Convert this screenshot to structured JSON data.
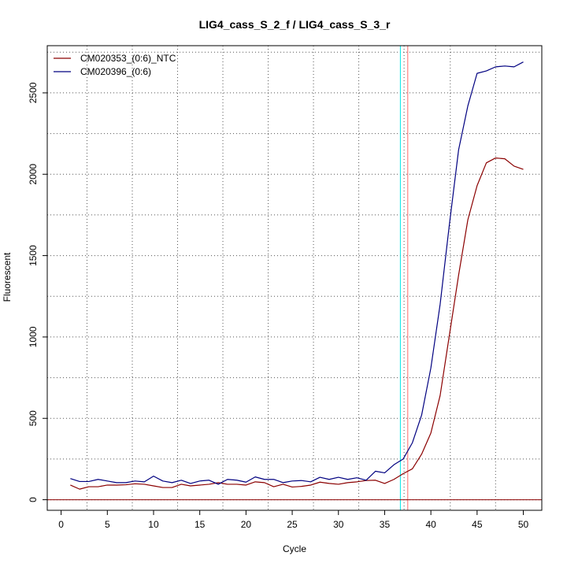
{
  "chart_data": {
    "type": "line",
    "title": "LIG4_cass_S_2_f / LIG4_cass_S_3_r",
    "xlabel": "Cycle",
    "ylabel": "Fluorescent",
    "xlim": [
      -1.5,
      52
    ],
    "ylim": [
      -65,
      2790
    ],
    "x_ticks": [
      0,
      5,
      10,
      15,
      20,
      25,
      30,
      35,
      40,
      45,
      50
    ],
    "y_ticks": [
      0,
      500,
      1000,
      1500,
      2000,
      2500
    ],
    "grid": true,
    "grid_style": "dotted",
    "legend_position": "top-left",
    "vertical_grid_x": [
      2.8,
      7.7,
      12.6,
      17.5,
      22.4,
      27.3,
      32.2,
      37.1,
      42.1,
      47.0
    ],
    "horizontal_grid_y": [
      0,
      250,
      500,
      750,
      1000,
      1250,
      1500,
      1750,
      2000,
      2250,
      2500,
      2750
    ],
    "threshold_lines": [
      {
        "x": 36.7,
        "color": "#00e5e5"
      },
      {
        "x": 37.5,
        "color": "#ff6a6a"
      }
    ],
    "baseline": {
      "y": 0,
      "color": "#8b0000"
    },
    "x": [
      1,
      2,
      3,
      4,
      5,
      6,
      7,
      8,
      9,
      10,
      11,
      12,
      13,
      14,
      15,
      16,
      17,
      18,
      19,
      20,
      21,
      22,
      23,
      24,
      25,
      26,
      27,
      28,
      29,
      30,
      31,
      32,
      33,
      34,
      35,
      36,
      37,
      38,
      39,
      40,
      41,
      42,
      43,
      44,
      45,
      46,
      47,
      48,
      49,
      50
    ],
    "series": [
      {
        "name": "CM020353_(0:6)_NTC",
        "color": "#8b0000",
        "values": [
          90,
          65,
          80,
          80,
          90,
          90,
          92,
          98,
          95,
          85,
          75,
          75,
          95,
          85,
          90,
          95,
          105,
          95,
          95,
          90,
          110,
          105,
          80,
          95,
          78,
          82,
          90,
          108,
          100,
          95,
          105,
          110,
          118,
          120,
          100,
          125,
          160,
          190,
          280,
          410,
          640,
          1010,
          1380,
          1720,
          1930,
          2070,
          2100,
          2095,
          2050,
          2030
        ]
      },
      {
        "name": "CM020396_(0:6)",
        "color": "#000080",
        "values": [
          130,
          112,
          112,
          125,
          115,
          105,
          105,
          115,
          110,
          145,
          115,
          105,
          120,
          100,
          115,
          120,
          95,
          125,
          120,
          108,
          140,
          125,
          125,
          105,
          115,
          118,
          110,
          138,
          125,
          138,
          125,
          135,
          120,
          175,
          165,
          215,
          250,
          350,
          520,
          810,
          1200,
          1690,
          2150,
          2420,
          2620,
          2635,
          2660,
          2665,
          2660,
          2690
        ]
      }
    ]
  }
}
